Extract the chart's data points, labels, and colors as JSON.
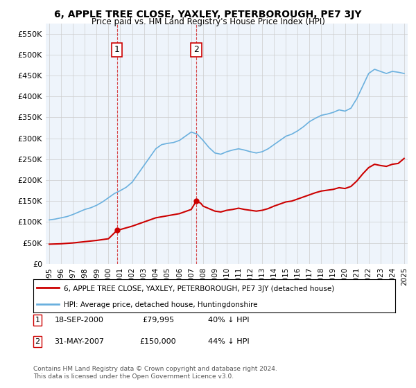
{
  "title": "6, APPLE TREE CLOSE, YAXLEY, PETERBOROUGH, PE7 3JY",
  "subtitle": "Price paid vs. HM Land Registry's House Price Index (HPI)",
  "hpi_color": "#6ab0de",
  "price_color": "#cc0000",
  "annotation_color": "#cc0000",
  "background_color": "#ffffff",
  "grid_color": "#cccccc",
  "panel_color": "#eef4fb",
  "ylim": [
    0,
    575000
  ],
  "yticks": [
    0,
    50000,
    100000,
    150000,
    200000,
    250000,
    300000,
    350000,
    400000,
    450000,
    500000,
    550000
  ],
  "ytick_labels": [
    "£0",
    "£50K",
    "£100K",
    "£150K",
    "£200K",
    "£250K",
    "£300K",
    "£350K",
    "£400K",
    "£450K",
    "£500K",
    "£550K"
  ],
  "legend_entry1": "6, APPLE TREE CLOSE, YAXLEY, PETERBOROUGH, PE7 3JY (detached house)",
  "legend_entry2": "HPI: Average price, detached house, Huntingdonshire",
  "annotation1_label": "1",
  "annotation1_date": "18-SEP-2000",
  "annotation1_price": "£79,995",
  "annotation1_hpi": "40% ↓ HPI",
  "annotation2_label": "2",
  "annotation2_date": "31-MAY-2007",
  "annotation2_price": "£150,000",
  "annotation2_hpi": "44% ↓ HPI",
  "footer": "Contains HM Land Registry data © Crown copyright and database right 2024.\nThis data is licensed under the Open Government Licence v3.0.",
  "x_start_year": 1995,
  "x_end_year": 2025,
  "sale1_year": 2000.72,
  "sale1_price": 79995,
  "sale2_year": 2007.42,
  "sale2_price": 150000
}
